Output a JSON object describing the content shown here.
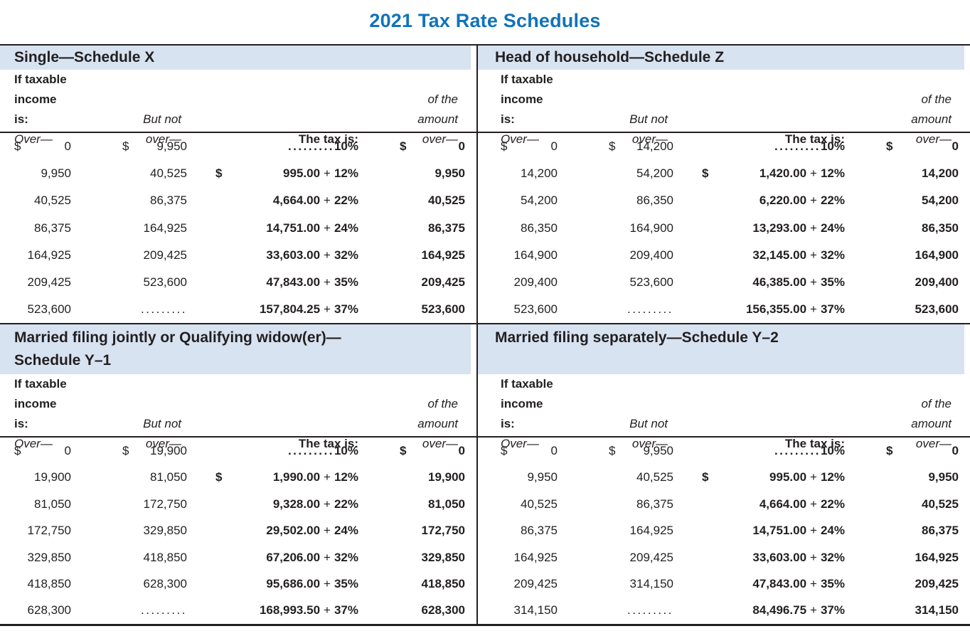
{
  "page": {
    "title": "2021 Tax Rate Schedules"
  },
  "theme": {
    "title_color": "#1073b9",
    "band_color": "#d8e3f1",
    "ink_color": "#231f20"
  },
  "column_headers": {
    "col1_line1": "If taxable",
    "col1_line2": "income is:",
    "col1_line3": "Over—",
    "col2_line2": "But not",
    "col2_line3": "over—",
    "col3_line3": "The tax is:",
    "col4_line1": "of the",
    "col4_line2": "amount",
    "col4_line3": "over—"
  },
  "schedules": [
    {
      "id": "single",
      "title_lines": [
        "Single—Schedule X"
      ],
      "rows": [
        {
          "over_sign": "$",
          "over": "0",
          "but_sign": "$",
          "but": "9,950",
          "tax_sign": "",
          "tax_dots": ".........",
          "tax_base": "",
          "tax_pct": "10%",
          "amt_sign": "$",
          "amt": "0"
        },
        {
          "over_sign": "",
          "over": "9,950",
          "but_sign": "",
          "but": "40,525",
          "tax_sign": "$",
          "tax_dots": "",
          "tax_base": "995.00",
          "tax_pct": "12%",
          "amt_sign": "",
          "amt": "9,950"
        },
        {
          "over_sign": "",
          "over": "40,525",
          "but_sign": "",
          "but": "86,375",
          "tax_sign": "",
          "tax_dots": "",
          "tax_base": "4,664.00",
          "tax_pct": "22%",
          "amt_sign": "",
          "amt": "40,525"
        },
        {
          "over_sign": "",
          "over": "86,375",
          "but_sign": "",
          "but": "164,925",
          "tax_sign": "",
          "tax_dots": "",
          "tax_base": "14,751.00",
          "tax_pct": "24%",
          "amt_sign": "",
          "amt": "86,375"
        },
        {
          "over_sign": "",
          "over": "164,925",
          "but_sign": "",
          "but": "209,425",
          "tax_sign": "",
          "tax_dots": "",
          "tax_base": "33,603.00",
          "tax_pct": "32%",
          "amt_sign": "",
          "amt": "164,925"
        },
        {
          "over_sign": "",
          "over": "209,425",
          "but_sign": "",
          "but": "523,600",
          "tax_sign": "",
          "tax_dots": "",
          "tax_base": "47,843.00",
          "tax_pct": "35%",
          "amt_sign": "",
          "amt": "209,425"
        },
        {
          "over_sign": "",
          "over": "523,600",
          "but_sign": "",
          "but": ".........",
          "tax_sign": "",
          "tax_dots": "",
          "tax_base": "157,804.25",
          "tax_pct": "37%",
          "amt_sign": "",
          "amt": "523,600"
        }
      ]
    },
    {
      "id": "head-of-household",
      "title_lines": [
        "Head of household—Schedule Z"
      ],
      "rows": [
        {
          "over_sign": "$",
          "over": "0",
          "but_sign": "$",
          "but": "14,200",
          "tax_sign": "",
          "tax_dots": ".........",
          "tax_base": "",
          "tax_pct": "10%",
          "amt_sign": "$",
          "amt": "0"
        },
        {
          "over_sign": "",
          "over": "14,200",
          "but_sign": "",
          "but": "54,200",
          "tax_sign": "$",
          "tax_dots": "",
          "tax_base": "1,420.00",
          "tax_pct": "12%",
          "amt_sign": "",
          "amt": "14,200"
        },
        {
          "over_sign": "",
          "over": "54,200",
          "but_sign": "",
          "but": "86,350",
          "tax_sign": "",
          "tax_dots": "",
          "tax_base": "6,220.00",
          "tax_pct": "22%",
          "amt_sign": "",
          "amt": "54,200"
        },
        {
          "over_sign": "",
          "over": "86,350",
          "but_sign": "",
          "but": "164,900",
          "tax_sign": "",
          "tax_dots": "",
          "tax_base": "13,293.00",
          "tax_pct": "24%",
          "amt_sign": "",
          "amt": "86,350"
        },
        {
          "over_sign": "",
          "over": "164,900",
          "but_sign": "",
          "but": "209,400",
          "tax_sign": "",
          "tax_dots": "",
          "tax_base": "32,145.00",
          "tax_pct": "32%",
          "amt_sign": "",
          "amt": "164,900"
        },
        {
          "over_sign": "",
          "over": "209,400",
          "but_sign": "",
          "but": "523,600",
          "tax_sign": "",
          "tax_dots": "",
          "tax_base": "46,385.00",
          "tax_pct": "35%",
          "amt_sign": "",
          "amt": "209,400"
        },
        {
          "over_sign": "",
          "over": "523,600",
          "but_sign": "",
          "but": ".........",
          "tax_sign": "",
          "tax_dots": "",
          "tax_base": "156,355.00",
          "tax_pct": "37%",
          "amt_sign": "",
          "amt": "523,600"
        }
      ]
    },
    {
      "id": "married-filing-jointly",
      "title_lines": [
        "Married filing jointly or Qualifying widow(er)—",
        "Schedule Y–1"
      ],
      "rows": [
        {
          "over_sign": "$",
          "over": "0",
          "but_sign": "$",
          "but": "19,900",
          "tax_sign": "",
          "tax_dots": ".........",
          "tax_base": "",
          "tax_pct": "10%",
          "amt_sign": "$",
          "amt": "0"
        },
        {
          "over_sign": "",
          "over": "19,900",
          "but_sign": "",
          "but": "81,050",
          "tax_sign": "$",
          "tax_dots": "",
          "tax_base": "1,990.00",
          "tax_pct": "12%",
          "amt_sign": "",
          "amt": "19,900"
        },
        {
          "over_sign": "",
          "over": "81,050",
          "but_sign": "",
          "but": "172,750",
          "tax_sign": "",
          "tax_dots": "",
          "tax_base": "9,328.00",
          "tax_pct": "22%",
          "amt_sign": "",
          "amt": "81,050"
        },
        {
          "over_sign": "",
          "over": "172,750",
          "but_sign": "",
          "but": "329,850",
          "tax_sign": "",
          "tax_dots": "",
          "tax_base": "29,502.00",
          "tax_pct": "24%",
          "amt_sign": "",
          "amt": "172,750"
        },
        {
          "over_sign": "",
          "over": "329,850",
          "but_sign": "",
          "but": "418,850",
          "tax_sign": "",
          "tax_dots": "",
          "tax_base": "67,206.00",
          "tax_pct": "32%",
          "amt_sign": "",
          "amt": "329,850"
        },
        {
          "over_sign": "",
          "over": "418,850",
          "but_sign": "",
          "but": "628,300",
          "tax_sign": "",
          "tax_dots": "",
          "tax_base": "95,686.00",
          "tax_pct": "35%",
          "amt_sign": "",
          "amt": "418,850"
        },
        {
          "over_sign": "",
          "over": "628,300",
          "but_sign": "",
          "but": ".........",
          "tax_sign": "",
          "tax_dots": "",
          "tax_base": "168,993.50",
          "tax_pct": "37%",
          "amt_sign": "",
          "amt": "628,300"
        }
      ]
    },
    {
      "id": "married-filing-separately",
      "title_lines": [
        "Married filing separately—Schedule Y–2"
      ],
      "rows": [
        {
          "over_sign": "$",
          "over": "0",
          "but_sign": "$",
          "but": "9,950",
          "tax_sign": "",
          "tax_dots": ".........",
          "tax_base": "",
          "tax_pct": "10%",
          "amt_sign": "$",
          "amt": "0"
        },
        {
          "over_sign": "",
          "over": "9,950",
          "but_sign": "",
          "but": "40,525",
          "tax_sign": "$",
          "tax_dots": "",
          "tax_base": "995.00",
          "tax_pct": "12%",
          "amt_sign": "",
          "amt": "9,950"
        },
        {
          "over_sign": "",
          "over": "40,525",
          "but_sign": "",
          "but": "86,375",
          "tax_sign": "",
          "tax_dots": "",
          "tax_base": "4,664.00",
          "tax_pct": "22%",
          "amt_sign": "",
          "amt": "40,525"
        },
        {
          "over_sign": "",
          "over": "86,375",
          "but_sign": "",
          "but": "164,925",
          "tax_sign": "",
          "tax_dots": "",
          "tax_base": "14,751.00",
          "tax_pct": "24%",
          "amt_sign": "",
          "amt": "86,375"
        },
        {
          "over_sign": "",
          "over": "164,925",
          "but_sign": "",
          "but": "209,425",
          "tax_sign": "",
          "tax_dots": "",
          "tax_base": "33,603.00",
          "tax_pct": "32%",
          "amt_sign": "",
          "amt": "164,925"
        },
        {
          "over_sign": "",
          "over": "209,425",
          "but_sign": "",
          "but": "314,150",
          "tax_sign": "",
          "tax_dots": "",
          "tax_base": "47,843.00",
          "tax_pct": "35%",
          "amt_sign": "",
          "amt": "209,425"
        },
        {
          "over_sign": "",
          "over": "314,150",
          "but_sign": "",
          "but": ".........",
          "tax_sign": "",
          "tax_dots": "",
          "tax_base": "84,496.75",
          "tax_pct": "37%",
          "amt_sign": "",
          "amt": "314,150"
        }
      ]
    }
  ]
}
